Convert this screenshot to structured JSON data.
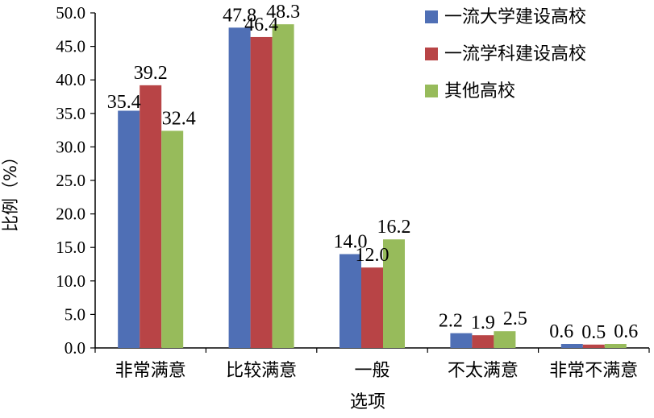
{
  "chart_data": {
    "type": "bar",
    "title": "",
    "xlabel": "选项",
    "ylabel": "比例（%）",
    "ylim": [
      0,
      50
    ],
    "yticks": [
      "0.0",
      "5.0",
      "10.0",
      "15.0",
      "20.0",
      "25.0",
      "30.0",
      "35.0",
      "40.0",
      "45.0",
      "50.0"
    ],
    "categories": [
      "非常满意",
      "比较满意",
      "一般",
      "不太满意",
      "非常不满意"
    ],
    "series": [
      {
        "name": "一流大学建设高校",
        "color": "#4f6fb5",
        "values": [
          35.4,
          47.8,
          14.0,
          2.2,
          0.6
        ],
        "labels": [
          "35.4",
          "47.8",
          "14.0",
          "2.2",
          "0.6"
        ]
      },
      {
        "name": "一流学科建设高校",
        "color": "#b84446",
        "values": [
          39.2,
          46.4,
          12.0,
          1.9,
          0.5
        ],
        "labels": [
          "39.2",
          "46.4",
          "12.0",
          "1.9",
          "0.5"
        ]
      },
      {
        "name": "其他高校",
        "color": "#97bb5b",
        "values": [
          32.4,
          48.3,
          16.2,
          2.5,
          0.6
        ],
        "labels": [
          "32.4",
          "48.3",
          "16.2",
          "2.5",
          "0.6"
        ]
      }
    ],
    "grid": false,
    "legend_position": "top-right"
  }
}
